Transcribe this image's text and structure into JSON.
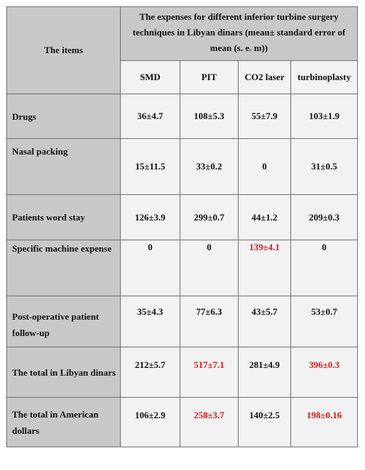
{
  "header": {
    "items_label": "The items",
    "group_title": "The expenses for different inferior turbine surgery techniques in Libyan dinars (mean± standard error of mean (s. e. m))",
    "columns": [
      "SMD",
      "PIT",
      "CO2 laser",
      "turbinoplasty"
    ]
  },
  "rows": [
    {
      "item": "Drugs",
      "values": [
        "36±4.7",
        "108±5.3",
        "55±7.9",
        "103±1.9"
      ],
      "highlight": [
        false,
        false,
        false,
        false
      ]
    },
    {
      "item": "Nasal packing",
      "values": [
        "15±11.5",
        "33±0.2",
        "0",
        "31±0.5"
      ],
      "highlight": [
        false,
        false,
        false,
        false
      ]
    },
    {
      "item": "Patients word stay",
      "values": [
        "126±3.9",
        "299±0.7",
        "44±1.2",
        "209±0.3"
      ],
      "highlight": [
        false,
        false,
        false,
        false
      ]
    },
    {
      "item": "Specific machine expense",
      "values": [
        "0",
        "0",
        "139±4.1",
        "0"
      ],
      "highlight": [
        false,
        false,
        true,
        false
      ]
    },
    {
      "item": "Post-operative patient follow-up",
      "values": [
        "35±4.3",
        "77±6.3",
        "43±5.7",
        "53±0.7"
      ],
      "highlight": [
        false,
        false,
        false,
        false
      ]
    },
    {
      "item": "The total in Libyan dinars",
      "values": [
        "212±5.7",
        "517±7.1",
        "281±4.9",
        "396±0.3"
      ],
      "highlight": [
        false,
        true,
        false,
        true
      ]
    },
    {
      "item": "The total in American dollars",
      "values": [
        "106±2.9",
        "258±3.7",
        "140±2.5",
        "198±0.16"
      ],
      "highlight": [
        false,
        true,
        false,
        true
      ]
    }
  ],
  "colors": {
    "header_bg": "#c8c8c8",
    "cell_bg": "#f2f2f2",
    "highlight": "#e8141a"
  }
}
